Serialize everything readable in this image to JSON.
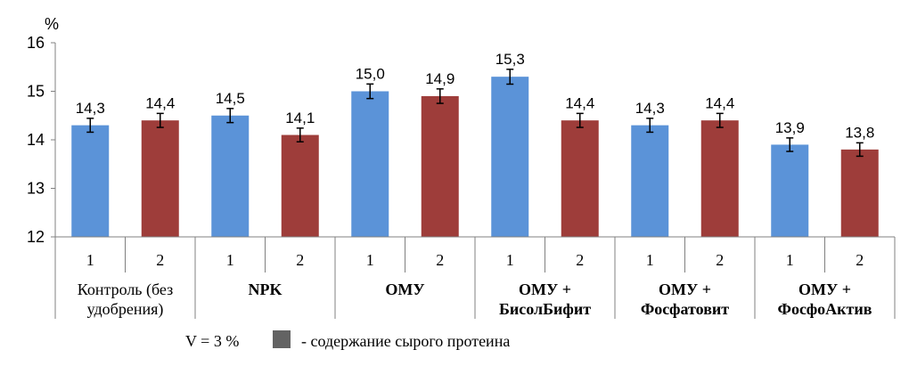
{
  "chart_data": {
    "type": "bar",
    "y_unit_label": "%",
    "ylim": [
      12,
      16
    ],
    "y_ticks": [
      "12",
      "13",
      "14",
      "15",
      "16"
    ],
    "groups": [
      {
        "label_lines": [
          "Контроль (без",
          "удобрения)"
        ],
        "bold": false,
        "sub": [
          "1",
          "2"
        ],
        "values": [
          14.3,
          14.4
        ],
        "labels": [
          "14,3",
          "14,4"
        ]
      },
      {
        "label_lines": [
          "NPK"
        ],
        "bold": true,
        "sub": [
          "1",
          "2"
        ],
        "values": [
          14.5,
          14.1
        ],
        "labels": [
          "14,5",
          "14,1"
        ]
      },
      {
        "label_lines": [
          "ОМУ"
        ],
        "bold": true,
        "sub": [
          "1",
          "2"
        ],
        "values": [
          15.0,
          14.9
        ],
        "labels": [
          "15,0",
          "14,9"
        ]
      },
      {
        "label_lines": [
          "ОМУ +",
          "БисолБифит"
        ],
        "bold": true,
        "sub": [
          "1",
          "2"
        ],
        "values": [
          15.3,
          14.4
        ],
        "labels": [
          "15,3",
          "14,4"
        ]
      },
      {
        "label_lines": [
          "ОМУ +",
          "Фосфатовит"
        ],
        "bold": true,
        "sub": [
          "1",
          "2"
        ],
        "values": [
          14.3,
          14.4
        ],
        "labels": [
          "14,3",
          "14,4"
        ]
      },
      {
        "label_lines": [
          "ОМУ +",
          "ФосфоАктив"
        ],
        "bold": true,
        "sub": [
          "1",
          "2"
        ],
        "values": [
          13.9,
          13.8
        ],
        "labels": [
          "13,9",
          "13,8"
        ]
      }
    ],
    "error_pct": 0.01,
    "colors": {
      "bar1": "#5B93D8",
      "bar2": "#9E3D3A",
      "legend_swatch": "#636363",
      "axis": "#808080"
    },
    "legend": {
      "prefix": "V = 3 %",
      "text": "- содержание сырого протеина"
    }
  }
}
